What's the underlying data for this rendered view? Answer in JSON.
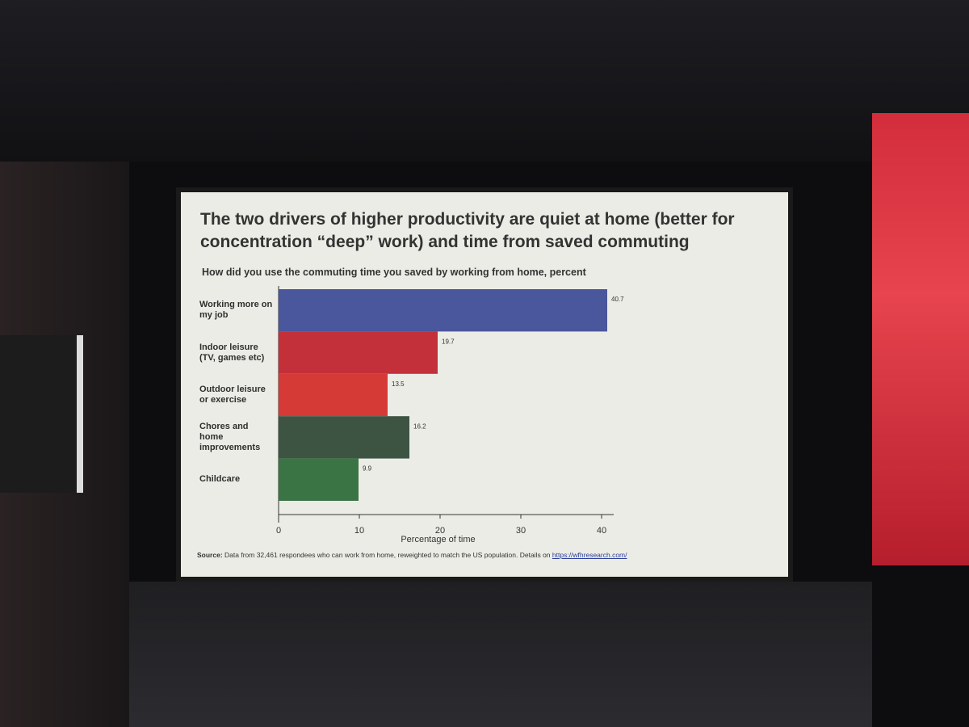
{
  "chart_data": {
    "type": "bar",
    "orientation": "horizontal",
    "title": "The two drivers of higher productivity are quiet at home (better for concentration “deep” work) and time from saved commuting",
    "subtitle": "How did you use the commuting time you saved by working from home, percent",
    "categories": [
      "Working more on my job",
      "Indoor leisure (TV, games etc)",
      "Outdoor leisure or exercise",
      "Chores and home improvements",
      "Childcare"
    ],
    "values": [
      40.7,
      19.7,
      13.5,
      16.2,
      9.9
    ],
    "colors": [
      "#4a579c",
      "#c4303a",
      "#d63a36",
      "#3d5443",
      "#3b7444"
    ],
    "xlim": [
      0,
      41.5
    ],
    "xticks": [
      0,
      10,
      20,
      30,
      40
    ],
    "x_label": "Percentage of time",
    "source_label": "Source:",
    "source": "Data from 32,461 respondees who can work from home, reweighted to match the US population. Details on",
    "source_link": "https://wfhresearch.com/"
  }
}
